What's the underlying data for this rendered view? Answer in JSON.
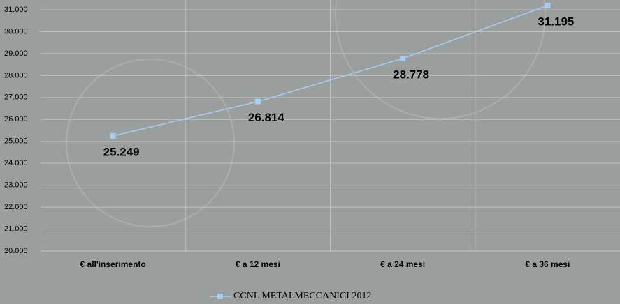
{
  "chart_data": {
    "type": "line",
    "categories": [
      "€ all'inserimento",
      "€ a 12 mesi",
      "€ a 24 mesi",
      "€ a 36 mesi"
    ],
    "series": [
      {
        "name": "CCNL METALMECCANICI 2012",
        "color": "#a9cdf2",
        "values": [
          25249,
          26814,
          28778,
          31195
        ],
        "value_labels": [
          "25.249",
          "26.814",
          "28.778",
          "31.195"
        ]
      }
    ],
    "ylim": [
      20000,
      31000
    ],
    "yticks": [
      {
        "value": 20000,
        "label": "20.000"
      },
      {
        "value": 21000,
        "label": "21.000"
      },
      {
        "value": 22000,
        "label": "22.000"
      },
      {
        "value": 23000,
        "label": "23.000"
      },
      {
        "value": 24000,
        "label": "24.000"
      },
      {
        "value": 25000,
        "label": "25.000"
      },
      {
        "value": 26000,
        "label": "26.000"
      },
      {
        "value": 27000,
        "label": "27.000"
      },
      {
        "value": 28000,
        "label": "28.000"
      },
      {
        "value": 29000,
        "label": "29.000"
      },
      {
        "value": 30000,
        "label": "30.000"
      },
      {
        "value": 31000,
        "label": "31.000"
      }
    ],
    "grid": true,
    "legend": "bottom"
  }
}
